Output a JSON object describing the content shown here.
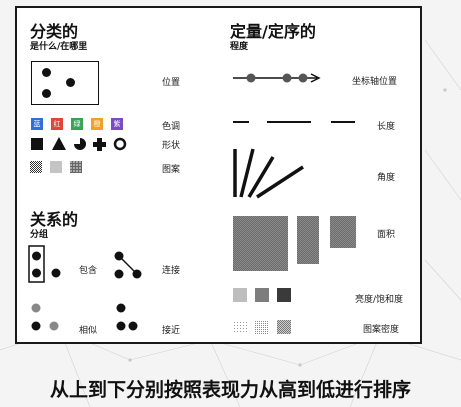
{
  "left": {
    "title": "分类的",
    "subtitle": "是什么/在哪里",
    "labels": {
      "position": "位置",
      "hue": "色调",
      "shape": "形状",
      "pattern": "图案"
    },
    "hue_swatches": [
      {
        "text": "蓝",
        "color": "#2f6fd6"
      },
      {
        "text": "红",
        "color": "#e0453a"
      },
      {
        "text": "绿",
        "color": "#3aa357"
      },
      {
        "text": "橙",
        "color": "#f0a028"
      },
      {
        "text": "紫",
        "color": "#7b4bc4"
      }
    ]
  },
  "right": {
    "title": "定量/定序的",
    "subtitle": "程度",
    "labels": {
      "axis_position": "坐标轴位置",
      "length": "长度",
      "angle": "角度",
      "area": "面积",
      "brightness": "亮度/饱和度",
      "pattern_density": "图案密度"
    }
  },
  "relational": {
    "title": "关系的",
    "subtitle": "分组",
    "labels": {
      "containment": "包含",
      "connection": "连接",
      "similarity": "相似",
      "proximity": "接近"
    }
  },
  "caption": "从上到下分别按照表现力从高到低进行排序"
}
